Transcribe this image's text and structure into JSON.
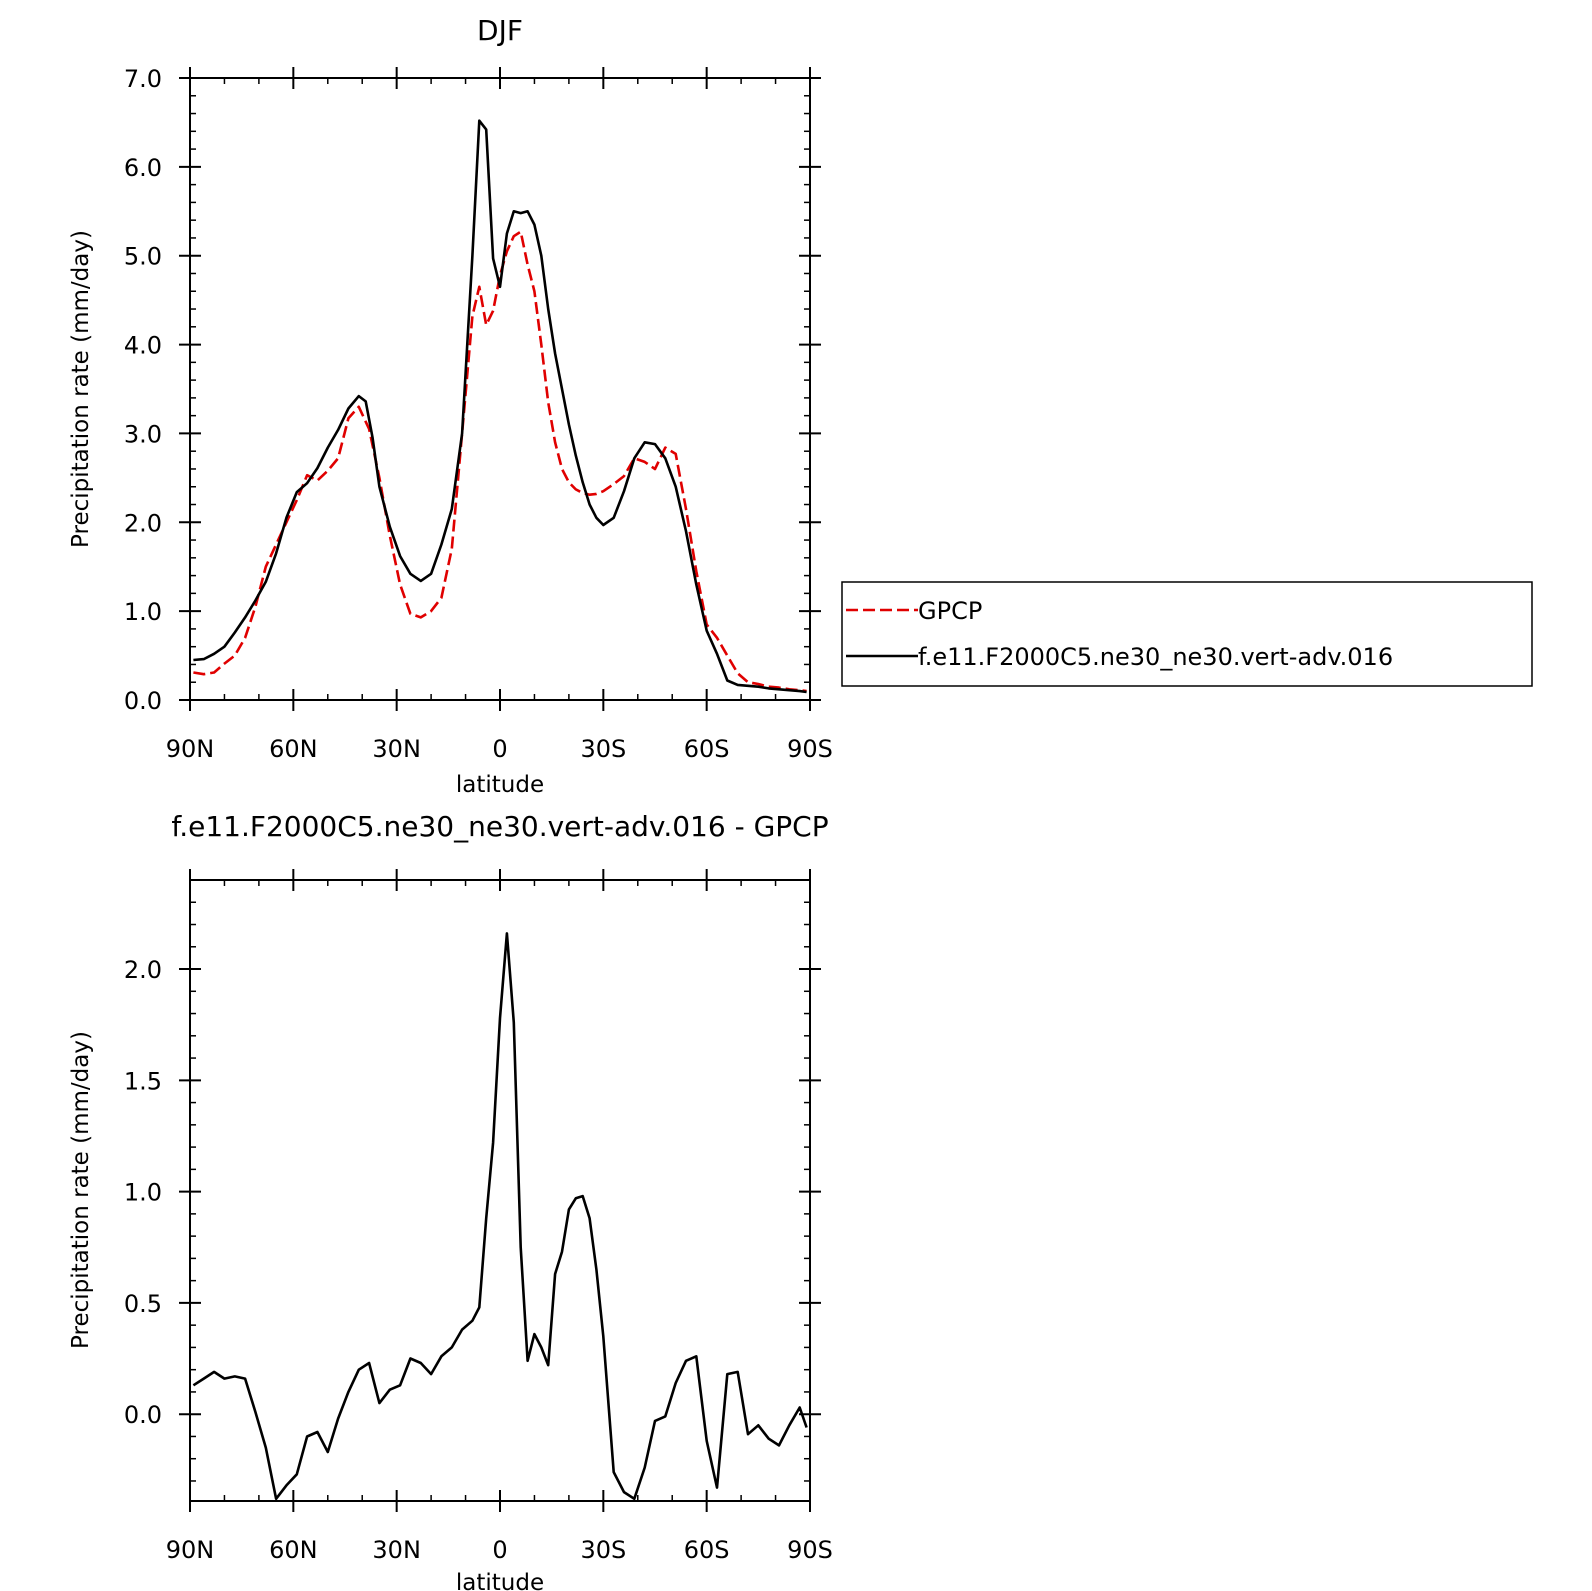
{
  "chart_data": [
    {
      "type": "line",
      "title": "DJF",
      "xlabel": "latitude",
      "ylabel": "Precipitation rate (mm/day)",
      "xlim": [
        -90,
        90
      ],
      "ylim": [
        0,
        7
      ],
      "x_ticks": [
        -90,
        -60,
        -30,
        0,
        30,
        60,
        90
      ],
      "x_tick_labels": [
        "90N",
        "60N",
        "30N",
        "0",
        "30S",
        "60S",
        "90S"
      ],
      "y_ticks": [
        0,
        1,
        2,
        3,
        4,
        5,
        6,
        7
      ],
      "y_tick_labels": [
        "0.0",
        "1.0",
        "2.0",
        "3.0",
        "4.0",
        "5.0",
        "6.0",
        "7.0"
      ],
      "legend": {
        "placement": "right, outside plot"
      },
      "series": [
        {
          "name": "GPCP",
          "color": "#e00000",
          "dash": "dashed",
          "x": [
            -89,
            -86,
            -83,
            -80,
            -77,
            -74,
            -71,
            -68,
            -65,
            -62,
            -59,
            -56,
            -53,
            -50,
            -47,
            -44,
            -41,
            -38,
            -35,
            -32,
            -29,
            -26,
            -23,
            -20,
            -17,
            -14,
            -11,
            -8,
            -6,
            -4,
            -2,
            0,
            2,
            4,
            6,
            8,
            10,
            12,
            14,
            16,
            18,
            20,
            22,
            24,
            26,
            28,
            30,
            33,
            36,
            39,
            42,
            45,
            48,
            51,
            54,
            57,
            60,
            63,
            66,
            69,
            72,
            75,
            78,
            81,
            84,
            87,
            89
          ],
          "y": [
            0.31,
            0.29,
            0.31,
            0.41,
            0.5,
            0.7,
            1.05,
            1.5,
            1.75,
            2.0,
            2.25,
            2.53,
            2.47,
            2.58,
            2.72,
            3.17,
            3.3,
            3.05,
            2.5,
            1.85,
            1.3,
            0.97,
            0.93,
            1.0,
            1.15,
            1.7,
            3.0,
            4.32,
            4.65,
            4.22,
            4.38,
            4.78,
            5.05,
            5.22,
            5.27,
            4.9,
            4.6,
            4.0,
            3.35,
            2.9,
            2.6,
            2.45,
            2.37,
            2.33,
            2.31,
            2.32,
            2.35,
            2.43,
            2.52,
            2.72,
            2.68,
            2.6,
            2.84,
            2.77,
            2.15,
            1.45,
            0.85,
            0.7,
            0.5,
            0.3,
            0.2,
            0.18,
            0.15,
            0.14,
            0.12,
            0.11,
            0.1
          ]
        },
        {
          "name": "f.e11.F2000C5.ne30_ne30.vert-adv.016",
          "color": "#000000",
          "dash": "solid",
          "x": [
            -89,
            -86,
            -83,
            -80,
            -77,
            -74,
            -71,
            -68,
            -65,
            -62,
            -59,
            -56,
            -53,
            -50,
            -47,
            -44,
            -41,
            -39,
            -37,
            -35,
            -32,
            -29,
            -26,
            -23,
            -20,
            -17,
            -14,
            -11,
            -8,
            -6,
            -4,
            -2,
            0,
            2,
            4,
            6,
            8,
            10,
            12,
            14,
            16,
            18,
            20,
            22,
            24,
            26,
            28,
            30,
            33,
            36,
            39,
            42,
            45,
            48,
            51,
            54,
            57,
            60,
            63,
            66,
            69,
            72,
            75,
            78,
            81,
            84,
            87,
            89
          ],
          "y": [
            0.45,
            0.46,
            0.52,
            0.6,
            0.76,
            0.93,
            1.12,
            1.33,
            1.65,
            2.05,
            2.34,
            2.44,
            2.61,
            2.84,
            3.04,
            3.28,
            3.42,
            3.36,
            2.95,
            2.4,
            1.95,
            1.62,
            1.42,
            1.34,
            1.42,
            1.75,
            2.15,
            3.0,
            5.0,
            6.52,
            6.42,
            4.97,
            4.65,
            5.25,
            5.5,
            5.48,
            5.5,
            5.35,
            5.0,
            4.4,
            3.9,
            3.5,
            3.1,
            2.75,
            2.45,
            2.2,
            2.05,
            1.97,
            2.05,
            2.35,
            2.72,
            2.9,
            2.88,
            2.72,
            2.4,
            1.9,
            1.3,
            0.78,
            0.52,
            0.22,
            0.17,
            0.16,
            0.15,
            0.13,
            0.12,
            0.11,
            0.1,
            0.09
          ]
        }
      ]
    },
    {
      "type": "line",
      "title": "f.e11.F2000C5.ne30_ne30.vert-adv.016 - GPCP",
      "xlabel": "latitude",
      "ylabel": "Precipitation rate (mm/day)",
      "xlim": [
        -90,
        90
      ],
      "ylim": [
        -0.39,
        2.4
      ],
      "x_ticks": [
        -90,
        -60,
        -30,
        0,
        30,
        60,
        90
      ],
      "x_tick_labels": [
        "90N",
        "60N",
        "30N",
        "0",
        "30S",
        "60S",
        "90S"
      ],
      "y_ticks": [
        0,
        0.5,
        1,
        1.5,
        2
      ],
      "y_tick_labels": [
        "0.0",
        "0.5",
        "1.0",
        "1.5",
        "2.0"
      ],
      "series": [
        {
          "color": "#000000",
          "dash": "solid",
          "x": [
            -89,
            -86,
            -83,
            -80,
            -77,
            -74,
            -71,
            -68,
            -65,
            -62,
            -59,
            -56,
            -53,
            -50,
            -47,
            -44,
            -41,
            -38,
            -35,
            -32,
            -29,
            -26,
            -23,
            -20,
            -17,
            -14,
            -11,
            -8,
            -6,
            -4,
            -2,
            0,
            2,
            4,
            6,
            8,
            10,
            12,
            14,
            16,
            18,
            20,
            22,
            24,
            26,
            28,
            30,
            33,
            36,
            39,
            42,
            45,
            48,
            51,
            54,
            57,
            60,
            63,
            66,
            69,
            72,
            75,
            78,
            81,
            84,
            87,
            89
          ],
          "y": [
            0.13,
            0.16,
            0.19,
            0.16,
            0.17,
            0.16,
            0.01,
            -0.15,
            -0.38,
            -0.32,
            -0.27,
            -0.1,
            -0.08,
            -0.17,
            -0.02,
            0.1,
            0.2,
            0.23,
            0.05,
            0.11,
            0.13,
            0.25,
            0.23,
            0.18,
            0.26,
            0.3,
            0.38,
            0.42,
            0.48,
            0.88,
            1.22,
            1.78,
            2.16,
            1.76,
            0.75,
            0.24,
            0.36,
            0.3,
            0.22,
            0.63,
            0.73,
            0.92,
            0.97,
            0.98,
            0.88,
            0.65,
            0.35,
            -0.26,
            -0.35,
            -0.38,
            -0.24,
            -0.03,
            -0.01,
            0.14,
            0.24,
            0.26,
            -0.12,
            -0.33,
            0.18,
            0.19,
            -0.09,
            -0.05,
            -0.11,
            -0.14,
            -0.05,
            0.03,
            -0.06
          ]
        }
      ]
    }
  ]
}
